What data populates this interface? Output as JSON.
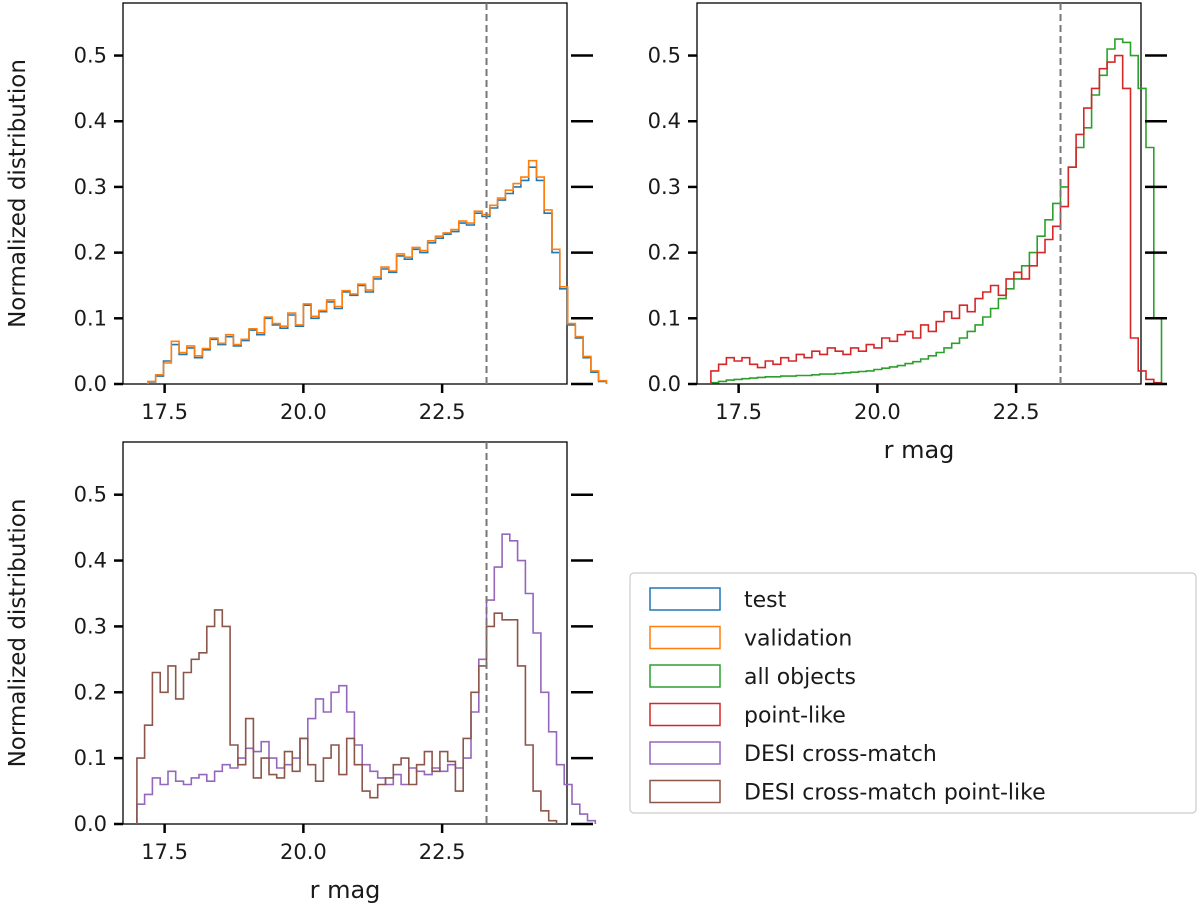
{
  "colors": {
    "test": "#1f77b4",
    "validation": "#ff7f0e",
    "all_objects": "#2ca02c",
    "point_like": "#d62728",
    "desi_cross_match": "#9467bd",
    "desi_cross_match_point_like": "#8c564b",
    "cut_line": "#777777"
  },
  "legend": {
    "placement": "lower-right",
    "entries": [
      {
        "label": "test",
        "color_key": "test"
      },
      {
        "label": "validation",
        "color_key": "validation"
      },
      {
        "label": "all objects",
        "color_key": "all_objects"
      },
      {
        "label": "point-like",
        "color_key": "point_like"
      },
      {
        "label": "DESI cross-match",
        "color_key": "desi_cross_match"
      },
      {
        "label": "DESI cross-match point-like",
        "color_key": "desi_cross_match_point_like"
      }
    ]
  },
  "chart_data": [
    {
      "type": "histogram",
      "panel": "top-left",
      "xlabel": "",
      "ylabel": "Normalized distribution",
      "xlim": [
        16.75,
        24.75
      ],
      "ylim": [
        0,
        0.58
      ],
      "xticks": [
        "17.5",
        "20.0",
        "22.5"
      ],
      "yticks": [
        "0.0",
        "0.1",
        "0.2",
        "0.3",
        "0.4",
        "0.5"
      ],
      "vline": 23.3,
      "bin_start": 17.2,
      "bin_width": 0.14,
      "series": [
        {
          "name": "test",
          "color_key": "test",
          "values": [
            0.003,
            0.012,
            0.035,
            0.06,
            0.045,
            0.055,
            0.04,
            0.052,
            0.068,
            0.06,
            0.072,
            0.058,
            0.066,
            0.082,
            0.075,
            0.1,
            0.09,
            0.085,
            0.105,
            0.088,
            0.12,
            0.1,
            0.11,
            0.125,
            0.115,
            0.14,
            0.135,
            0.15,
            0.14,
            0.16,
            0.175,
            0.17,
            0.195,
            0.19,
            0.205,
            0.2,
            0.215,
            0.222,
            0.228,
            0.232,
            0.245,
            0.242,
            0.26,
            0.255,
            0.268,
            0.28,
            0.29,
            0.3,
            0.31,
            0.33,
            0.31,
            0.26,
            0.2,
            0.145,
            0.09,
            0.07,
            0.04,
            0.018,
            0.004
          ]
        },
        {
          "name": "validation",
          "color_key": "validation",
          "values": [
            0.004,
            0.014,
            0.032,
            0.065,
            0.048,
            0.058,
            0.043,
            0.054,
            0.07,
            0.062,
            0.075,
            0.06,
            0.068,
            0.084,
            0.078,
            0.102,
            0.092,
            0.088,
            0.108,
            0.09,
            0.122,
            0.103,
            0.112,
            0.128,
            0.118,
            0.142,
            0.137,
            0.152,
            0.143,
            0.163,
            0.178,
            0.172,
            0.198,
            0.193,
            0.208,
            0.203,
            0.218,
            0.225,
            0.23,
            0.235,
            0.248,
            0.245,
            0.263,
            0.258,
            0.272,
            0.283,
            0.295,
            0.305,
            0.315,
            0.34,
            0.315,
            0.265,
            0.205,
            0.148,
            0.092,
            0.072,
            0.042,
            0.02,
            0.005
          ]
        }
      ]
    },
    {
      "type": "histogram",
      "panel": "top-right",
      "xlabel": "r mag",
      "ylabel": "",
      "xlim": [
        16.75,
        24.75
      ],
      "ylim": [
        0,
        0.58
      ],
      "xticks": [
        "17.5",
        "20.0",
        "22.5"
      ],
      "yticks": [
        "0.0",
        "0.1",
        "0.2",
        "0.3",
        "0.4",
        "0.5"
      ],
      "vline": 23.3,
      "bin_start": 17.0,
      "bin_width": 0.14,
      "series": [
        {
          "name": "all objects",
          "color_key": "all_objects",
          "values": [
            0.002,
            0.004,
            0.006,
            0.007,
            0.008,
            0.009,
            0.01,
            0.011,
            0.011,
            0.012,
            0.012,
            0.013,
            0.013,
            0.014,
            0.015,
            0.015,
            0.016,
            0.017,
            0.018,
            0.019,
            0.02,
            0.022,
            0.024,
            0.026,
            0.028,
            0.031,
            0.034,
            0.038,
            0.043,
            0.048,
            0.055,
            0.062,
            0.07,
            0.08,
            0.09,
            0.102,
            0.115,
            0.13,
            0.145,
            0.16,
            0.18,
            0.2,
            0.225,
            0.25,
            0.275,
            0.3,
            0.33,
            0.36,
            0.39,
            0.44,
            0.47,
            0.51,
            0.525,
            0.52,
            0.5,
            0.45,
            0.36,
            0.1
          ]
        },
        {
          "name": "point-like",
          "color_key": "point_like",
          "values": [
            0.02,
            0.03,
            0.04,
            0.035,
            0.04,
            0.03,
            0.025,
            0.035,
            0.03,
            0.04,
            0.035,
            0.045,
            0.04,
            0.05,
            0.045,
            0.055,
            0.05,
            0.045,
            0.055,
            0.05,
            0.06,
            0.055,
            0.07,
            0.065,
            0.075,
            0.08,
            0.07,
            0.09,
            0.08,
            0.095,
            0.11,
            0.1,
            0.12,
            0.11,
            0.13,
            0.14,
            0.15,
            0.135,
            0.16,
            0.17,
            0.16,
            0.18,
            0.2,
            0.22,
            0.24,
            0.27,
            0.33,
            0.38,
            0.42,
            0.45,
            0.48,
            0.49,
            0.5,
            0.45,
            0.07,
            0.02,
            0.007,
            0.002
          ]
        }
      ]
    },
    {
      "type": "histogram",
      "panel": "bottom-left",
      "xlabel": "r mag",
      "ylabel": "Normalized distribution",
      "xlim": [
        16.75,
        24.75
      ],
      "ylim": [
        0,
        0.58
      ],
      "xticks": [
        "17.5",
        "20.0",
        "22.5"
      ],
      "yticks": [
        "0.0",
        "0.1",
        "0.2",
        "0.3",
        "0.4",
        "0.5"
      ],
      "vline": 23.3,
      "bin_start": 17.0,
      "bin_width": 0.14,
      "series": [
        {
          "name": "DESI cross-match",
          "color_key": "desi_cross_match",
          "values": [
            0.03,
            0.045,
            0.07,
            0.06,
            0.08,
            0.065,
            0.06,
            0.07,
            0.075,
            0.065,
            0.08,
            0.09,
            0.085,
            0.1,
            0.115,
            0.11,
            0.125,
            0.1,
            0.085,
            0.09,
            0.1,
            0.13,
            0.16,
            0.19,
            0.17,
            0.2,
            0.21,
            0.17,
            0.12,
            0.09,
            0.08,
            0.07,
            0.06,
            0.075,
            0.06,
            0.085,
            0.08,
            0.075,
            0.085,
            0.08,
            0.09,
            0.085,
            0.1,
            0.17,
            0.25,
            0.34,
            0.39,
            0.44,
            0.43,
            0.4,
            0.35,
            0.29,
            0.2,
            0.14,
            0.09,
            0.06,
            0.03,
            0.015,
            0.005
          ]
        },
        {
          "name": "DESI cross-match point-like",
          "color_key": "desi_cross_match_point_like",
          "values": [
            0.1,
            0.15,
            0.23,
            0.2,
            0.24,
            0.19,
            0.23,
            0.25,
            0.26,
            0.3,
            0.325,
            0.3,
            0.12,
            0.09,
            0.16,
            0.07,
            0.1,
            0.075,
            0.07,
            0.11,
            0.08,
            0.13,
            0.09,
            0.065,
            0.1,
            0.12,
            0.075,
            0.13,
            0.09,
            0.05,
            0.04,
            0.06,
            0.07,
            0.09,
            0.1,
            0.06,
            0.09,
            0.11,
            0.08,
            0.11,
            0.095,
            0.05,
            0.13,
            0.2,
            0.24,
            0.3,
            0.32,
            0.31,
            0.31,
            0.24,
            0.12,
            0.05,
            0.02,
            0.005
          ]
        }
      ]
    }
  ]
}
